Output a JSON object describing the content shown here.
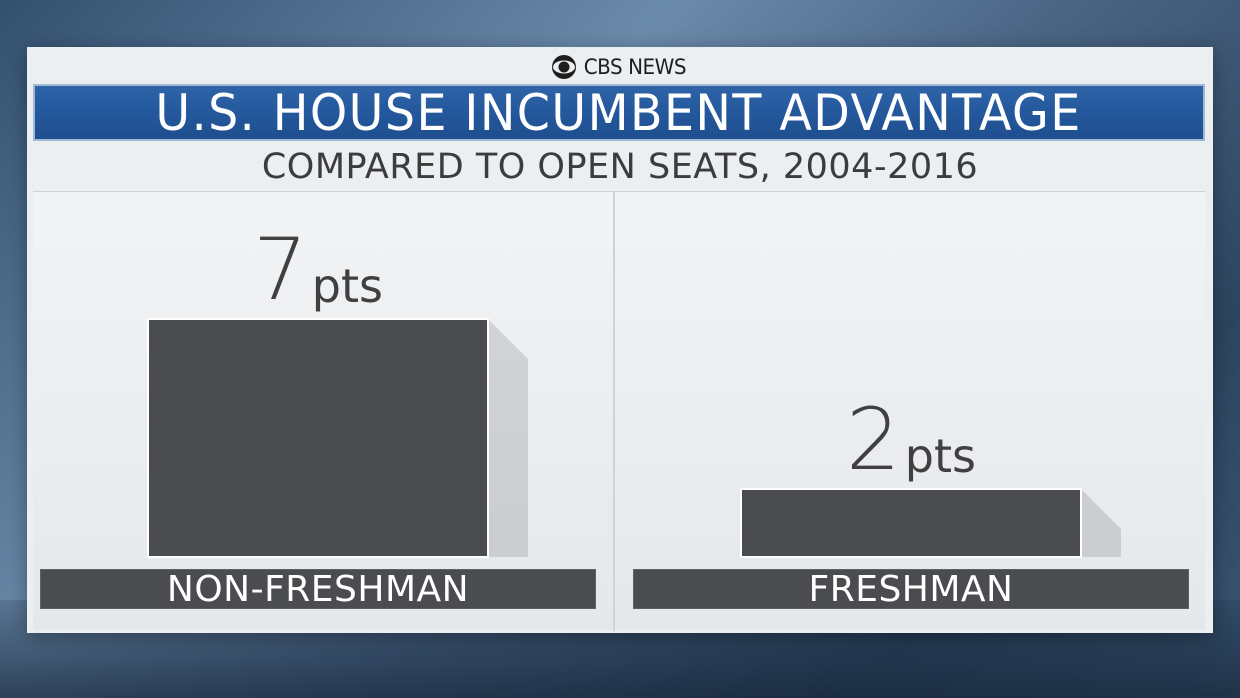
{
  "branding": {
    "logo_text": "CBS NEWS"
  },
  "chart_data": {
    "type": "bar",
    "title": "U.S. HOUSE INCUMBENT ADVANTAGE",
    "subtitle": "COMPARED TO OPEN SEATS, 2004-2016",
    "categories": [
      "NON-FRESHMAN",
      "FRESHMAN"
    ],
    "values": [
      7,
      2
    ],
    "unit": "pts",
    "bar_color": "#4a4c4f",
    "ylim": [
      0,
      7
    ]
  }
}
